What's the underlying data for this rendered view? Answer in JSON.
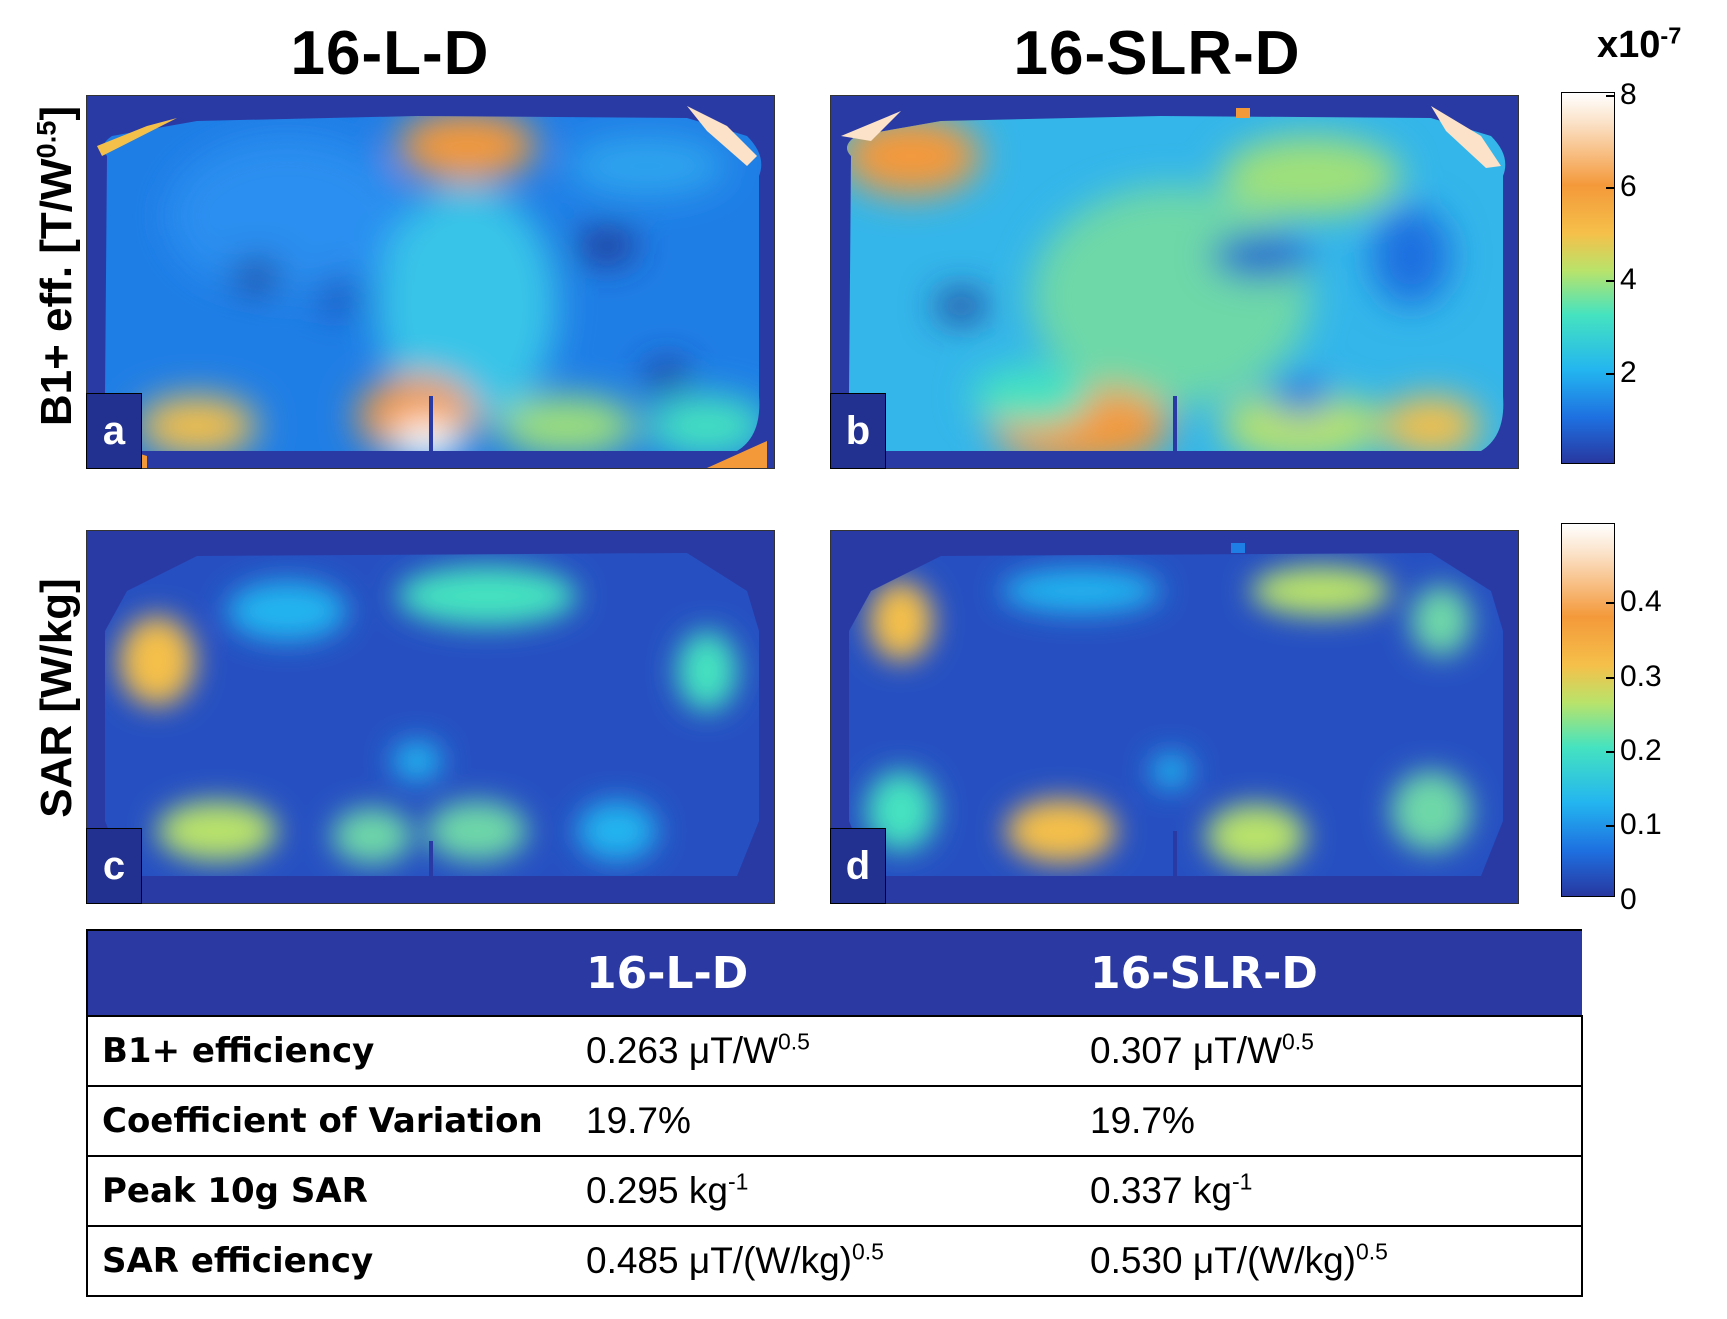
{
  "figure": {
    "columns": [
      "16-L-D",
      "16-SLR-D"
    ],
    "row_labels": {
      "b1": {
        "text": "B1+ eff. [T/W",
        "sup": "0.5",
        "close": "]"
      },
      "sar": "SAR [W/kg]"
    },
    "panels": [
      {
        "letter": "a",
        "map": "B1+ efficiency map, 16-L-D"
      },
      {
        "letter": "b",
        "map": "B1+ efficiency map, 16-SLR-D"
      },
      {
        "letter": "c",
        "map": "SAR map, 16-L-D"
      },
      {
        "letter": "d",
        "map": "SAR map, 16-SLR-D"
      }
    ],
    "colorbar_b1": {
      "exponent_base": "x10",
      "exponent_sup": "-7",
      "ticks": [
        "8",
        "6",
        "4",
        "2"
      ],
      "range": [
        0,
        8
      ]
    },
    "colorbar_sar": {
      "ticks": [
        "0.4",
        "0.3",
        "0.2",
        "0.1",
        "0"
      ],
      "range": [
        0,
        0.5
      ]
    },
    "colormap": [
      "#2838a0",
      "#1e6fe0",
      "#23b5f0",
      "#45e3c0",
      "#b9e36a",
      "#f5c04a",
      "#f4993a",
      "#fbe2c8",
      "#ffffff"
    ]
  },
  "table": {
    "headers": [
      "",
      "16-L-D",
      "16-SLR-D"
    ],
    "rows": [
      {
        "label": "B1+ efficiency",
        "v1": "0.263 μT/W",
        "v1_sup": "0.5",
        "v2": "0.307 μT/W",
        "v2_sup": "0.5"
      },
      {
        "label": "Coefficient of Variation",
        "v1": "19.7%",
        "v1_sup": "",
        "v2": "19.7%",
        "v2_sup": ""
      },
      {
        "label": "Peak 10g SAR",
        "v1": "0.295 kg",
        "v1_sup": "-1",
        "v2": "0.337 kg",
        "v2_sup": "-1"
      },
      {
        "label": "SAR efficiency",
        "v1": "0.485 μT/(W/kg)",
        "v1_sup": "0.5",
        "v2": "0.530 μT/(W/kg)",
        "v2_sup": "0.5"
      }
    ]
  }
}
